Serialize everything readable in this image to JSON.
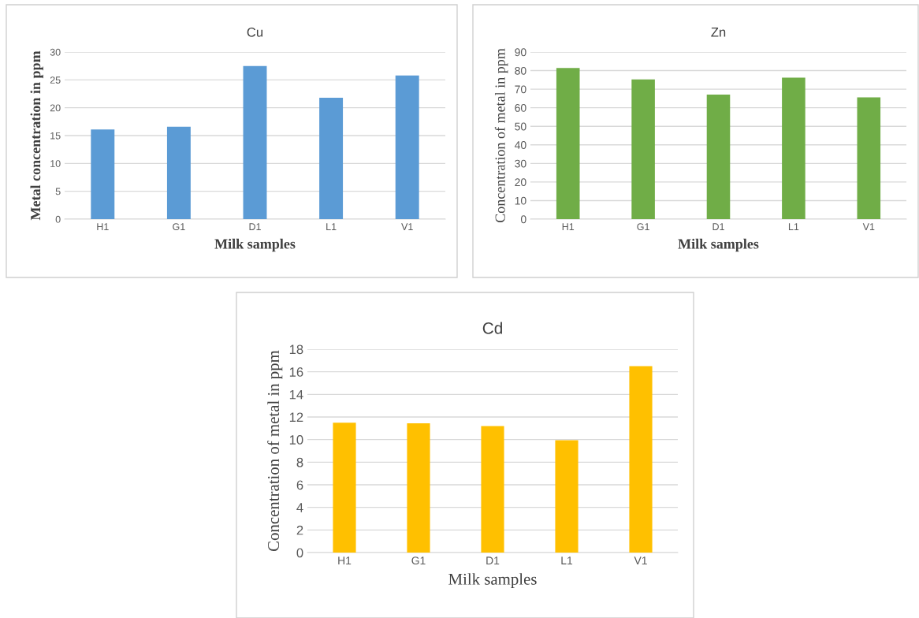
{
  "chart_data": [
    {
      "type": "bar",
      "title": "Cu",
      "xlabel": "Milk samples",
      "ylabel": "Metal concentration in ppm",
      "categories": [
        "H1",
        "G1",
        "D1",
        "L1",
        "V1"
      ],
      "values": [
        16.1,
        16.6,
        27.5,
        21.8,
        25.8
      ],
      "color": "#5b9bd5",
      "ylim": [
        0,
        30
      ],
      "yticks": [
        0,
        5,
        10,
        15,
        20,
        25,
        30
      ],
      "grid": "y"
    },
    {
      "type": "bar",
      "title": "Zn",
      "xlabel": "Milk samples",
      "ylabel": "Concentration of metal in ppm",
      "categories": [
        "H1",
        "G1",
        "D1",
        "L1",
        "V1"
      ],
      "values": [
        81.4,
        75.2,
        67.1,
        76.2,
        65.6
      ],
      "color": "#70ad47",
      "ylim": [
        0,
        90
      ],
      "yticks": [
        0,
        10,
        20,
        30,
        40,
        50,
        60,
        70,
        80,
        90
      ],
      "grid": "y"
    },
    {
      "type": "bar",
      "title": "Cd",
      "xlabel": "Milk samples",
      "ylabel": "Concentration of metal in ppm",
      "categories": [
        "H1",
        "G1",
        "D1",
        "L1",
        "V1"
      ],
      "values": [
        11.5,
        11.45,
        11.2,
        9.95,
        16.5
      ],
      "color": "#ffc000",
      "ylim": [
        0,
        18
      ],
      "yticks": [
        0,
        2,
        4,
        6,
        8,
        10,
        12,
        14,
        16,
        18
      ],
      "grid": "y"
    }
  ]
}
